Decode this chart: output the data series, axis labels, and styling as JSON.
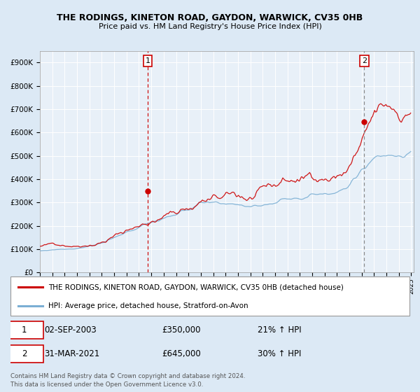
{
  "title1": "THE RODINGS, KINETON ROAD, GAYDON, WARWICK, CV35 0HB",
  "title2": "Price paid vs. HM Land Registry's House Price Index (HPI)",
  "legend_line1": "THE RODINGS, KINETON ROAD, GAYDON, WARWICK, CV35 0HB (detached house)",
  "legend_line2": "HPI: Average price, detached house, Stratford-on-Avon",
  "marker1_date": "02-SEP-2003",
  "marker1_price": 350000,
  "marker1_label": "21% ↑ HPI",
  "marker2_date": "31-MAR-2021",
  "marker2_price": 645000,
  "marker2_label": "30% ↑ HPI",
  "footer1": "Contains HM Land Registry data © Crown copyright and database right 2024.",
  "footer2": "This data is licensed under the Open Government Licence v3.0.",
  "red_color": "#cc0000",
  "blue_color": "#7bafd4",
  "bg_color": "#dce9f5",
  "plot_bg": "#e8f0f8",
  "grid_color": "#ffffff",
  "vline2_color": "#888888",
  "ylim_max": 950000,
  "yticks": [
    0,
    100000,
    200000,
    300000,
    400000,
    500000,
    600000,
    700000,
    800000,
    900000
  ],
  "ytick_labels": [
    "£0",
    "£100K",
    "£200K",
    "£300K",
    "£400K",
    "£500K",
    "£600K",
    "£700K",
    "£800K",
    "£900K"
  ]
}
